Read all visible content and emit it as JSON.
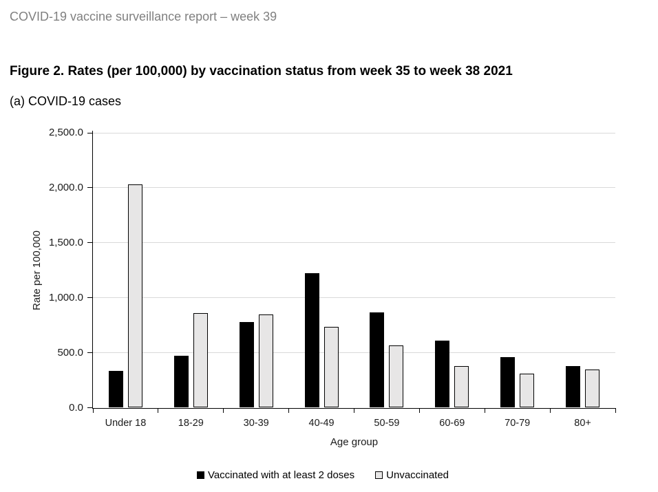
{
  "page": {
    "header": "COVID-19 vaccine surveillance report – week 39",
    "figure_title": "Figure 2. Rates (per 100,000) by vaccination status from week 35 to week 38 2021",
    "figure_subtitle": "(a) COVID-19 cases"
  },
  "colors": {
    "header_text": "#808080",
    "title_text": "#000000",
    "gridline": "#d9d9d9",
    "axis_line": "#000000",
    "vaccinated_bar_fill": "#000000",
    "unvaccinated_bar_fill": "#e7e6e6",
    "bar_border": "#000000"
  },
  "chart_data": {
    "type": "bar",
    "title": "(a) COVID-19 cases",
    "xlabel": "Age group",
    "ylabel": "Rate per 100,000",
    "ylim": [
      0,
      2500
    ],
    "ytick_step": 500,
    "ytick_labels": [
      "0.0",
      "500.0",
      "1,000.0",
      "1,500.0",
      "2,000.0",
      "2,500.0"
    ],
    "grid": true,
    "legend_position": "bottom",
    "categories": [
      "Under 18",
      "18-29",
      "30-39",
      "40-49",
      "50-59",
      "60-69",
      "70-79",
      "80+"
    ],
    "series": [
      {
        "name": "Vaccinated with at least 2 doses",
        "color": "#000000",
        "values": [
          335,
          475,
          780,
          1225,
          868,
          611,
          459,
          381
        ]
      },
      {
        "name": "Unvaccinated",
        "color": "#e7e6e6",
        "values": [
          2030,
          862,
          850,
          737,
          568,
          376,
          312,
          348
        ]
      }
    ]
  }
}
